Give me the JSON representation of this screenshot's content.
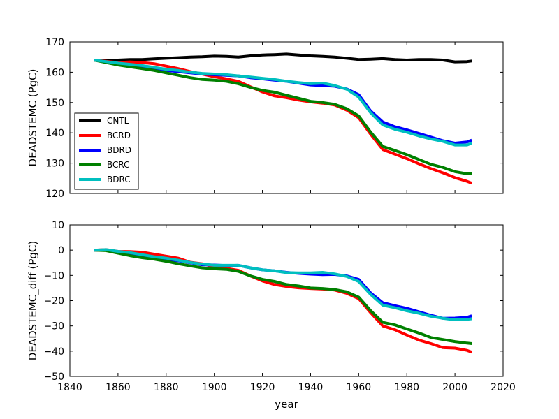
{
  "chart_data": [
    {
      "type": "line",
      "ylabel": "DEADSTEMC (PgC)",
      "xlabel": "",
      "xlim": [
        1840,
        2020
      ],
      "ylim": [
        120,
        170
      ],
      "yticks": [
        120,
        130,
        140,
        150,
        160,
        170
      ],
      "legend": {
        "position": "lower-left",
        "entries": [
          "CNTL",
          "BCRD",
          "BDRD",
          "BCRC",
          "BDRC"
        ]
      },
      "x": [
        1850,
        1855,
        1860,
        1865,
        1870,
        1875,
        1880,
        1885,
        1890,
        1895,
        1900,
        1905,
        1910,
        1915,
        1920,
        1925,
        1930,
        1935,
        1940,
        1945,
        1950,
        1955,
        1960,
        1965,
        1970,
        1975,
        1980,
        1985,
        1990,
        1995,
        2000,
        2005,
        2007
      ],
      "series": [
        {
          "name": "CNTL",
          "color": "#000000",
          "values": [
            164.0,
            163.8,
            164.0,
            164.2,
            164.2,
            164.4,
            164.6,
            164.8,
            165.0,
            165.1,
            165.3,
            165.2,
            165.0,
            165.4,
            165.7,
            165.8,
            166.0,
            165.7,
            165.4,
            165.2,
            165.0,
            164.6,
            164.2,
            164.3,
            164.5,
            164.2,
            164.0,
            164.2,
            164.2,
            164.0,
            163.4,
            163.5,
            163.7
          ]
        },
        {
          "name": "BCRD",
          "color": "#ff0000",
          "values": [
            164.0,
            163.6,
            163.2,
            163.4,
            163.2,
            162.8,
            162.0,
            161.2,
            160.2,
            159.4,
            158.5,
            157.8,
            157.0,
            155.2,
            153.5,
            152.2,
            151.6,
            150.8,
            150.2,
            149.8,
            149.2,
            147.5,
            145.0,
            139.5,
            134.5,
            133.0,
            131.5,
            129.8,
            128.2,
            126.8,
            125.2,
            124.0,
            123.4
          ]
        },
        {
          "name": "BDRD",
          "color": "#0000ff",
          "values": [
            164.0,
            163.4,
            162.5,
            162.2,
            162.0,
            161.4,
            160.6,
            160.2,
            159.8,
            159.4,
            159.2,
            159.0,
            158.8,
            158.2,
            157.8,
            157.4,
            157.0,
            156.4,
            155.8,
            155.6,
            155.4,
            154.5,
            152.6,
            147.2,
            143.6,
            142.0,
            141.0,
            139.8,
            138.6,
            137.4,
            136.6,
            137.0,
            137.6
          ]
        },
        {
          "name": "BCRC",
          "color": "#008000",
          "values": [
            164.0,
            163.2,
            162.4,
            161.8,
            161.2,
            160.6,
            159.8,
            159.0,
            158.2,
            157.6,
            157.4,
            157.0,
            156.2,
            155.0,
            154.0,
            153.4,
            152.4,
            151.4,
            150.4,
            150.0,
            149.4,
            148.0,
            145.6,
            140.2,
            135.5,
            134.2,
            132.8,
            131.2,
            129.6,
            128.6,
            127.2,
            126.5,
            126.6
          ]
        },
        {
          "name": "BDRC",
          "color": "#00bfbf",
          "values": [
            164.0,
            163.5,
            163.0,
            162.6,
            162.2,
            161.6,
            161.0,
            160.6,
            160.0,
            159.6,
            159.4,
            159.2,
            158.8,
            158.4,
            158.0,
            157.6,
            157.0,
            156.6,
            156.2,
            156.4,
            155.6,
            154.4,
            151.8,
            146.6,
            142.6,
            141.2,
            140.2,
            139.0,
            138.0,
            137.2,
            136.0,
            136.0,
            136.6
          ]
        }
      ]
    },
    {
      "type": "line",
      "ylabel": "DEADSTEMC_diff (PgC)",
      "xlabel": "year",
      "xlim": [
        1840,
        2020
      ],
      "ylim": [
        -50,
        10
      ],
      "yticks": [
        -50,
        -40,
        -30,
        -20,
        -10,
        0,
        10
      ],
      "xticks": [
        1840,
        1860,
        1880,
        1900,
        1920,
        1940,
        1960,
        1980,
        2000,
        2020
      ],
      "x": [
        1850,
        1855,
        1860,
        1865,
        1870,
        1875,
        1880,
        1885,
        1890,
        1895,
        1900,
        1905,
        1910,
        1915,
        1920,
        1925,
        1930,
        1935,
        1940,
        1945,
        1950,
        1955,
        1960,
        1965,
        1970,
        1975,
        1980,
        1985,
        1990,
        1995,
        2000,
        2005,
        2007
      ],
      "series": [
        {
          "name": "BCRD",
          "color": "#ff0000",
          "values": [
            0.0,
            0.2,
            -0.5,
            -0.6,
            -0.8,
            -1.6,
            -2.4,
            -3.2,
            -4.8,
            -5.4,
            -6.6,
            -7.2,
            -8.0,
            -10.2,
            -12.2,
            -13.6,
            -14.4,
            -14.9,
            -15.2,
            -15.4,
            -15.8,
            -17.1,
            -19.2,
            -24.8,
            -30.0,
            -31.5,
            -33.6,
            -35.6,
            -37.0,
            -38.6,
            -38.8,
            -39.7,
            -40.4
          ]
        },
        {
          "name": "BDRD",
          "color": "#0000ff",
          "values": [
            0.0,
            0.0,
            -0.7,
            -1.7,
            -2.0,
            -2.8,
            -3.6,
            -4.2,
            -5.0,
            -5.8,
            -5.9,
            -6.1,
            -6.0,
            -7.0,
            -7.8,
            -8.2,
            -8.8,
            -9.2,
            -9.5,
            -9.7,
            -9.6,
            -10.2,
            -11.6,
            -17.0,
            -20.8,
            -22.0,
            -23.0,
            -24.4,
            -25.8,
            -27.0,
            -26.9,
            -26.6,
            -26.0
          ]
        },
        {
          "name": "BCRC",
          "color": "#008000",
          "values": [
            0.0,
            -0.2,
            -1.2,
            -2.2,
            -3.0,
            -3.6,
            -4.4,
            -5.4,
            -6.2,
            -7.0,
            -7.4,
            -7.6,
            -8.4,
            -10.2,
            -11.6,
            -12.4,
            -13.6,
            -14.2,
            -15.0,
            -15.2,
            -15.6,
            -16.5,
            -18.6,
            -24.0,
            -28.6,
            -29.6,
            -31.2,
            -32.8,
            -34.6,
            -35.4,
            -36.2,
            -36.8,
            -37.0
          ]
        },
        {
          "name": "BDRC",
          "color": "#00bfbf",
          "values": [
            0.0,
            0.2,
            -0.5,
            -1.0,
            -1.8,
            -2.6,
            -3.2,
            -4.0,
            -4.9,
            -5.5,
            -6.0,
            -6.0,
            -6.0,
            -7.0,
            -7.8,
            -8.2,
            -8.9,
            -9.0,
            -9.0,
            -8.8,
            -9.4,
            -10.4,
            -12.4,
            -17.6,
            -21.8,
            -22.8,
            -24.0,
            -25.0,
            -26.2,
            -27.0,
            -27.6,
            -27.4,
            -27.2
          ]
        }
      ]
    }
  ]
}
